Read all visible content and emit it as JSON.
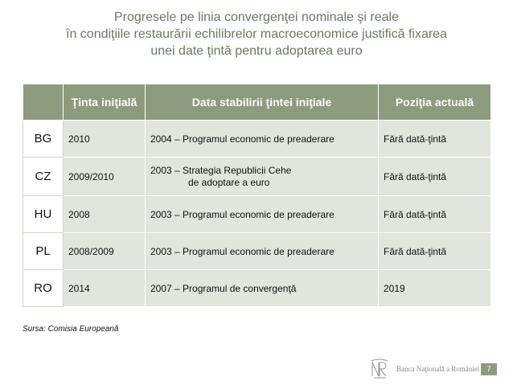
{
  "title": {
    "line1": "Progresele pe linia convergenţei nominale şi reale",
    "line2": "în condiţiile restaurării echilibrelor macroeconomice justifică fixarea",
    "line3": "unei date ţintă pentru adoptarea euro"
  },
  "table": {
    "headers": {
      "code": "",
      "target": "Ţinta iniţială",
      "date_set": "Data stabilirii ţintei iniţiale",
      "current": "Poziţia actuală"
    },
    "rows": [
      {
        "code": "BG",
        "target": "2010",
        "date_set": "2004 – Programul economic de preaderare",
        "current": "Fără dată-ţintă"
      },
      {
        "code": "CZ",
        "target": "2009/2010",
        "date_set_line1": "2003 – Strategia Republicii Cehe",
        "date_set_line2": "de adoptare a euro",
        "current": "Fără dată-ţintă"
      },
      {
        "code": "HU",
        "target": "2008",
        "date_set": "2003 – Programul economic de preaderare",
        "current": "Fără dată-ţintă"
      },
      {
        "code": "PL",
        "target": "2008/2009",
        "date_set": "2003 – Programul economic de preaderare",
        "current": "Fără dată-ţintă"
      },
      {
        "code": "RO",
        "target": "2014",
        "date_set": "2007 – Programul de convergenţă",
        "current": "2019"
      }
    ]
  },
  "source": "Sursa: Comisia Europeană",
  "footer": {
    "bank_name": "Banca Naţională a României",
    "page_number": "7",
    "accent_color": "#8c9b7d",
    "logo_icon": "bnr-monogram-icon"
  }
}
